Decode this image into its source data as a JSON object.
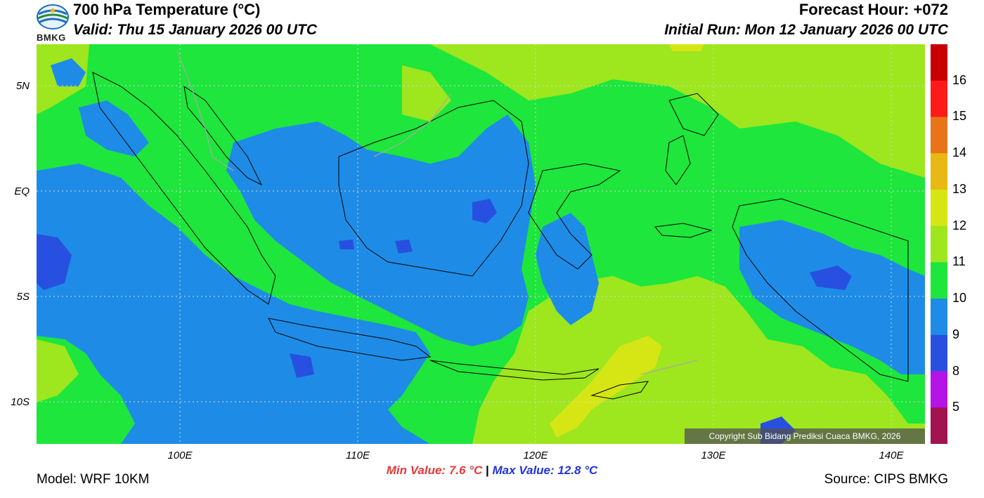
{
  "header": {
    "title": "700 hPa Temperature (°C)",
    "valid": "Valid: Thu 15 January 2026 00 UTC",
    "forecast_hour": "Forecast Hour: +072",
    "initial_run": "Initial Run: Mon 12 January 2026 00 UTC",
    "logo_text": "BMKG"
  },
  "axes": {
    "lat_labels": [
      "5N",
      "EQ",
      "5S",
      "10S"
    ],
    "lon_labels": [
      "100E",
      "110E",
      "120E",
      "130E",
      "140E"
    ]
  },
  "colorbar": {
    "labels": [
      "16",
      "15",
      "14",
      "13",
      "12",
      "11",
      "10",
      "9",
      "8",
      "5"
    ],
    "colors": [
      "#c80000",
      "#ff1a1a",
      "#e8741a",
      "#e8b814",
      "#d6e614",
      "#9ee61e",
      "#1ee63c",
      "#1e8ce6",
      "#2850e0",
      "#b414e6",
      "#a01450"
    ]
  },
  "stats": {
    "min": "Min Value: 7.6 °C",
    "separator": "|",
    "max": "Max Value: 12.8 °C"
  },
  "footer": {
    "model": "Model: WRF 10KM",
    "source": "Source: CIPS BMKG",
    "copyright": "Copyright Sub Bidang Prediksi Cuaca BMKG, 2026"
  }
}
